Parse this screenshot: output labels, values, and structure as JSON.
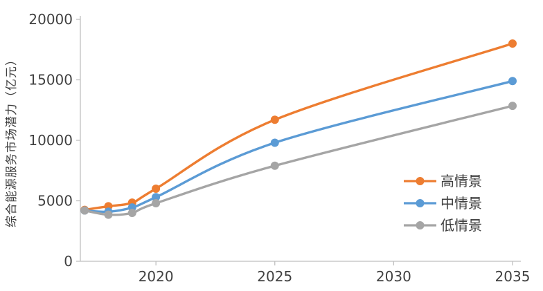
{
  "chart_data": {
    "type": "line",
    "title": "",
    "xlabel": "",
    "ylabel": "综合能源服务市场潜力（亿元）",
    "x": [
      2017,
      2018,
      2019,
      2020,
      2025,
      2035
    ],
    "series": [
      {
        "name": "高情景",
        "color": "#ED7D31",
        "values": [
          4250,
          4550,
          4850,
          6000,
          11700,
          18000
        ]
      },
      {
        "name": "中情景",
        "color": "#5B9BD5",
        "values": [
          4200,
          4100,
          4450,
          5300,
          9800,
          14900
        ]
      },
      {
        "name": "低情景",
        "color": "#A5A5A5",
        "values": [
          4200,
          3850,
          4000,
          4800,
          7900,
          12850
        ]
      }
    ],
    "xlim": [
      2016.82,
      2035.35
    ],
    "ylim": [
      0,
      20000
    ],
    "xticks": [
      2020,
      2025,
      2030,
      2035
    ],
    "yticks": [
      0,
      5000,
      10000,
      15000,
      20000
    ],
    "grid": false,
    "legend_position": "inside-right",
    "legend_entries": [
      "高情景",
      "中情景",
      "低情景"
    ],
    "marker": "circle",
    "smooth_lines": true,
    "axis_color": "#BFBFBF",
    "text_color": "#404040",
    "background_color": "#FFFFFF"
  }
}
